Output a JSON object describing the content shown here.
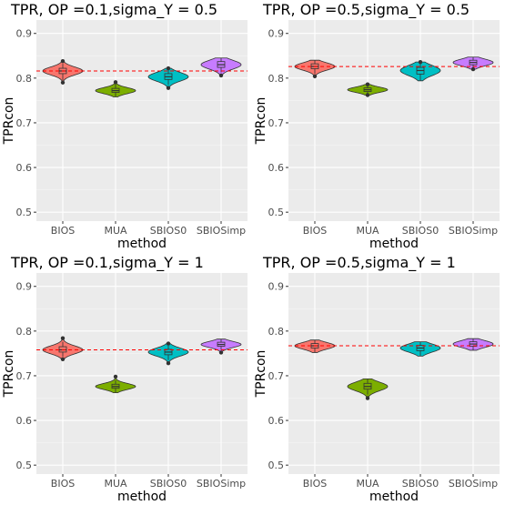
{
  "chart_data": [
    {
      "type": "violin",
      "title": "TPR, OP =0.1,sigma_Y = 0.5",
      "xlabel": "method",
      "ylabel": "TPRcon",
      "ylim": [
        0.48,
        0.93
      ],
      "yticks": [
        "0.5",
        "0.6",
        "0.7",
        "0.8",
        "0.9"
      ],
      "reference_line": 0.816,
      "series": [
        {
          "category": "BIOS",
          "color": "#F8766D",
          "median": 0.816,
          "q1": 0.81,
          "q3": 0.822,
          "min": 0.795,
          "max": 0.832,
          "outliers": [
            0.79,
            0.838
          ]
        },
        {
          "category": "MUA",
          "color": "#7CAE00",
          "median": 0.772,
          "q1": 0.768,
          "q3": 0.777,
          "min": 0.758,
          "max": 0.787,
          "outliers": [
            0.791
          ]
        },
        {
          "category": "SBIOS0",
          "color": "#00BFC4",
          "median": 0.803,
          "q1": 0.797,
          "q3": 0.81,
          "min": 0.785,
          "max": 0.818,
          "outliers": [
            0.778,
            0.822
          ]
        },
        {
          "category": "SBIOSimp",
          "color": "#C77CFF",
          "median": 0.83,
          "q1": 0.824,
          "q3": 0.837,
          "min": 0.813,
          "max": 0.845,
          "outliers": [
            0.806
          ]
        }
      ]
    },
    {
      "type": "violin",
      "title": "TPR, OP =0.5,sigma_Y = 0.5",
      "xlabel": "method",
      "ylabel": "TPRcon",
      "ylim": [
        0.48,
        0.93
      ],
      "yticks": [
        "0.5",
        "0.6",
        "0.7",
        "0.8",
        "0.9"
      ],
      "reference_line": 0.826,
      "series": [
        {
          "category": "BIOS",
          "color": "#F8766D",
          "median": 0.826,
          "q1": 0.821,
          "q3": 0.832,
          "min": 0.81,
          "max": 0.84,
          "outliers": [
            0.804
          ]
        },
        {
          "category": "MUA",
          "color": "#7CAE00",
          "median": 0.774,
          "q1": 0.77,
          "q3": 0.778,
          "min": 0.762,
          "max": 0.783,
          "outliers": [
            0.786,
            0.762
          ]
        },
        {
          "category": "SBIOS0",
          "color": "#00BFC4",
          "median": 0.817,
          "q1": 0.809,
          "q3": 0.824,
          "min": 0.794,
          "max": 0.832,
          "outliers": [
            0.836
          ]
        },
        {
          "category": "SBIOSimp",
          "color": "#C77CFF",
          "median": 0.835,
          "q1": 0.83,
          "q3": 0.84,
          "min": 0.823,
          "max": 0.847,
          "outliers": [
            0.82
          ]
        }
      ]
    },
    {
      "type": "violin",
      "title": "TPR, OP =0.1,sigma_Y = 1",
      "xlabel": "method",
      "ylabel": "TPRcon",
      "ylim": [
        0.48,
        0.93
      ],
      "yticks": [
        "0.5",
        "0.6",
        "0.7",
        "0.8",
        "0.9"
      ],
      "reference_line": 0.758,
      "series": [
        {
          "category": "BIOS",
          "color": "#F8766D",
          "median": 0.758,
          "q1": 0.753,
          "q3": 0.765,
          "min": 0.743,
          "max": 0.776,
          "outliers": [
            0.737,
            0.784
          ]
        },
        {
          "category": "MUA",
          "color": "#7CAE00",
          "median": 0.676,
          "q1": 0.672,
          "q3": 0.681,
          "min": 0.662,
          "max": 0.69,
          "outliers": [
            0.698
          ]
        },
        {
          "category": "SBIOS0",
          "color": "#00BFC4",
          "median": 0.753,
          "q1": 0.747,
          "q3": 0.759,
          "min": 0.735,
          "max": 0.767,
          "outliers": [
            0.728,
            0.772
          ]
        },
        {
          "category": "SBIOSimp",
          "color": "#C77CFF",
          "median": 0.77,
          "q1": 0.766,
          "q3": 0.775,
          "min": 0.758,
          "max": 0.782,
          "outliers": [
            0.752
          ]
        }
      ]
    },
    {
      "type": "violin",
      "title": "TPR, OP =0.5,sigma_Y = 1",
      "xlabel": "method",
      "ylabel": "TPRcon",
      "ylim": [
        0.48,
        0.93
      ],
      "yticks": [
        "0.5",
        "0.6",
        "0.7",
        "0.8",
        "0.9"
      ],
      "reference_line": 0.767,
      "series": [
        {
          "category": "BIOS",
          "color": "#F8766D",
          "median": 0.767,
          "q1": 0.762,
          "q3": 0.772,
          "min": 0.752,
          "max": 0.78,
          "outliers": []
        },
        {
          "category": "MUA",
          "color": "#7CAE00",
          "median": 0.676,
          "q1": 0.67,
          "q3": 0.683,
          "min": 0.658,
          "max": 0.693,
          "outliers": [
            0.65
          ]
        },
        {
          "category": "SBIOS0",
          "color": "#00BFC4",
          "median": 0.762,
          "q1": 0.756,
          "q3": 0.768,
          "min": 0.744,
          "max": 0.776,
          "outliers": []
        },
        {
          "category": "SBIOSimp",
          "color": "#C77CFF",
          "median": 0.771,
          "q1": 0.766,
          "q3": 0.776,
          "min": 0.757,
          "max": 0.783,
          "outliers": []
        }
      ]
    }
  ]
}
